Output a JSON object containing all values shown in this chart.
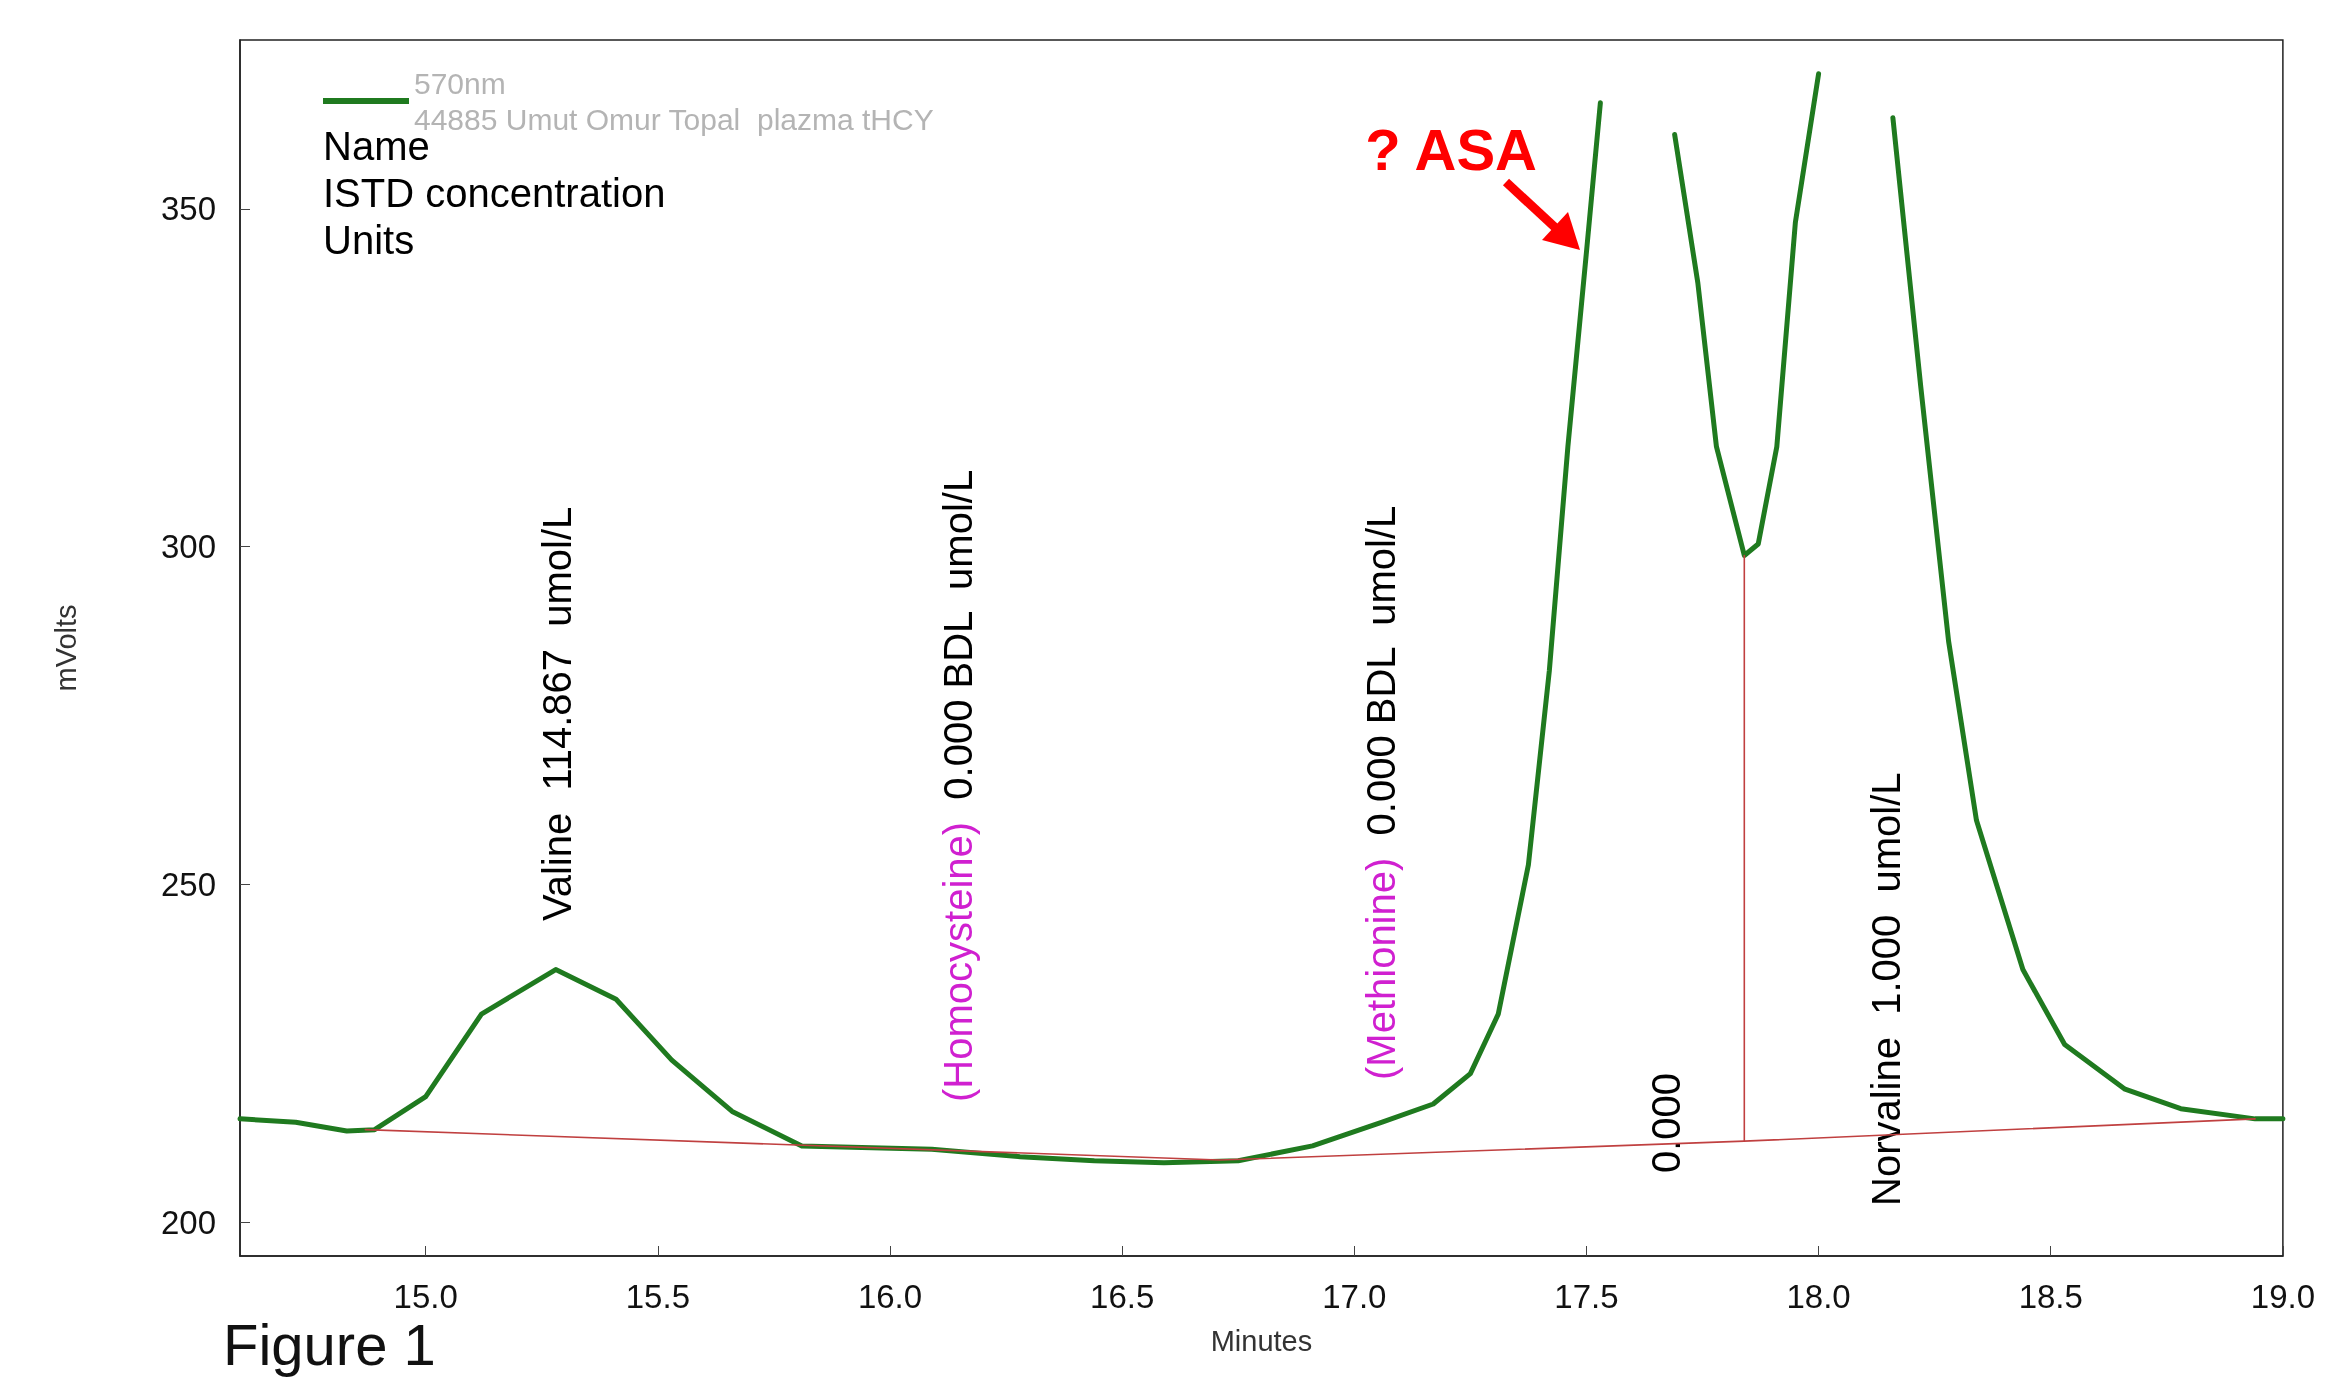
{
  "chart_data": {
    "type": "line",
    "title": "Figure 1",
    "xlabel": "Minutes",
    "ylabel": "mVolts",
    "xlim": [
      14.6,
      19.0
    ],
    "ylim": [
      195,
      375
    ],
    "xticks": [
      {
        "value": 15,
        "label": "15.0"
      },
      {
        "value": 15.5,
        "label": "15.5"
      },
      {
        "value": 16,
        "label": "16.0"
      },
      {
        "value": 16.5,
        "label": "16.5"
      },
      {
        "value": 17,
        "label": "17.0"
      },
      {
        "value": 17.5,
        "label": "17.5"
      },
      {
        "value": 18,
        "label": "18.0"
      },
      {
        "value": 18.5,
        "label": "18.5"
      },
      {
        "value": 19,
        "label": "19.0"
      }
    ],
    "yticks": [
      200,
      250,
      300,
      350
    ],
    "grid": false,
    "legend": "top left",
    "marker": "none",
    "line_style": "solid",
    "series": [
      {
        "name": "570nm\n44885 Umut Omur Topal  plazma tHCY",
        "color": "#1f7a1f",
        "x": [
          14.6,
          14.72,
          14.83,
          14.89,
          15.0,
          15.12,
          15.28,
          15.41,
          15.53,
          15.66,
          15.81,
          16.09,
          16.28,
          16.44,
          16.59,
          16.75,
          16.91,
          17.06,
          17.17,
          17.25,
          17.31,
          17.375,
          17.42,
          17.46,
          17.5,
          17.53,
          17.55,
          17.6,
          17.65,
          17.69,
          17.74,
          17.78,
          17.84,
          17.87,
          17.91,
          17.95,
          18.0,
          18.02,
          18.08,
          18.13,
          18.16,
          18.22,
          18.28,
          18.34,
          18.44,
          18.53,
          18.66,
          18.78,
          18.94,
          19.0
        ],
        "values": [
          215.3,
          214.8,
          213.5,
          213.7,
          218.6,
          230.8,
          237.4,
          233,
          224,
          216.4,
          211.3,
          210.8,
          209.7,
          209.1,
          208.8,
          209.1,
          211.3,
          214.8,
          217.5,
          222,
          230.8,
          252.9,
          281.6,
          314.8,
          343.6,
          365.7,
          null,
          null,
          null,
          361,
          339,
          314.8,
          298.7,
          300.4,
          314.8,
          348,
          370,
          null,
          null,
          null,
          363.5,
          323.7,
          286,
          259.5,
          237.4,
          226.3,
          219.7,
          216.8,
          215.3,
          215.3
        ]
      },
      {
        "type": "line",
        "color": "#c04040",
        "x": [
          14.87,
          16.71,
          17.84,
          18.94
        ],
        "values": [
          213.7,
          209.2,
          212,
          215.3
        ]
      },
      {
        "type": "line",
        "color": "#c04040",
        "x": [
          17.84,
          17.84
        ],
        "values": [
          212,
          298.7
        ]
      }
    ],
    "annotations": [
      "Name",
      "ISTD concentration",
      "Units",
      "Valine  114.867  umol/L",
      "(Homocysteine)  0.000 BDL  umol/L",
      "(Methionine)  0.000 BDL  umol/L",
      "0.000",
      "Norvaline  1.000  umol/L",
      "? ASA"
    ]
  }
}
